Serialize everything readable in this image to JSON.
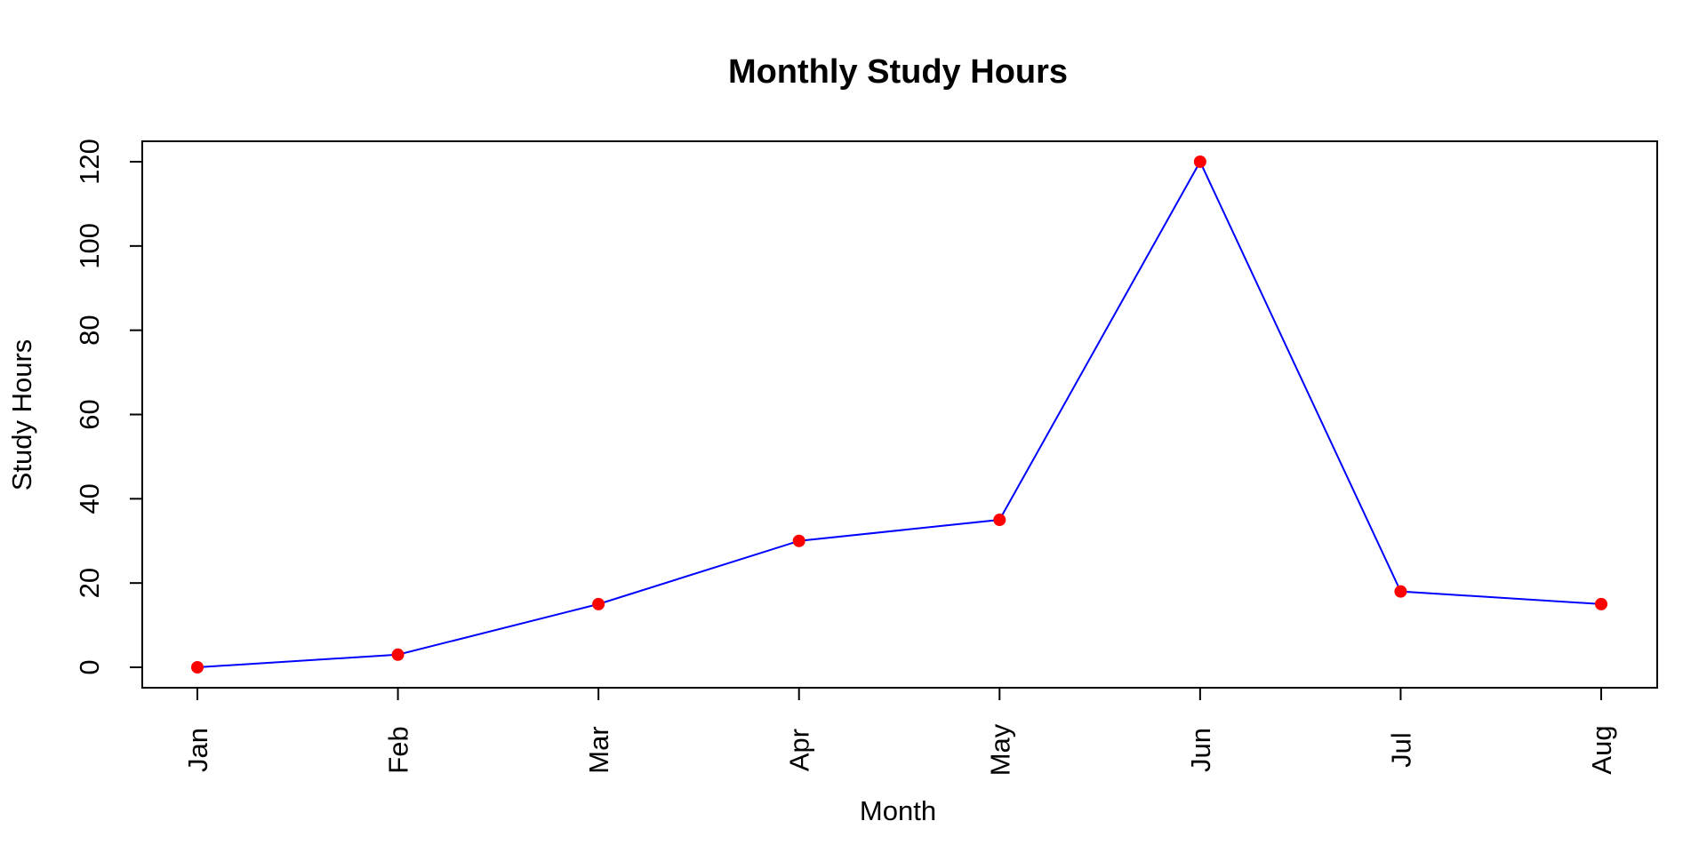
{
  "chart_data": {
    "type": "line",
    "title": "Monthly Study Hours",
    "xlabel": "Month",
    "ylabel": "Study Hours",
    "categories": [
      "Jan",
      "Feb",
      "Mar",
      "Apr",
      "May",
      "Jun",
      "Jul",
      "Aug"
    ],
    "series": [
      {
        "values": [
          0,
          3,
          15,
          30,
          35,
          120,
          18,
          15
        ]
      }
    ],
    "yticks": [
      0,
      20,
      40,
      60,
      80,
      100,
      120
    ],
    "ylim": [
      -5,
      125
    ],
    "grid": false,
    "legend": "none",
    "colors": {
      "line": "#0000ff",
      "point": "#ff0000",
      "axis": "#000000"
    }
  }
}
